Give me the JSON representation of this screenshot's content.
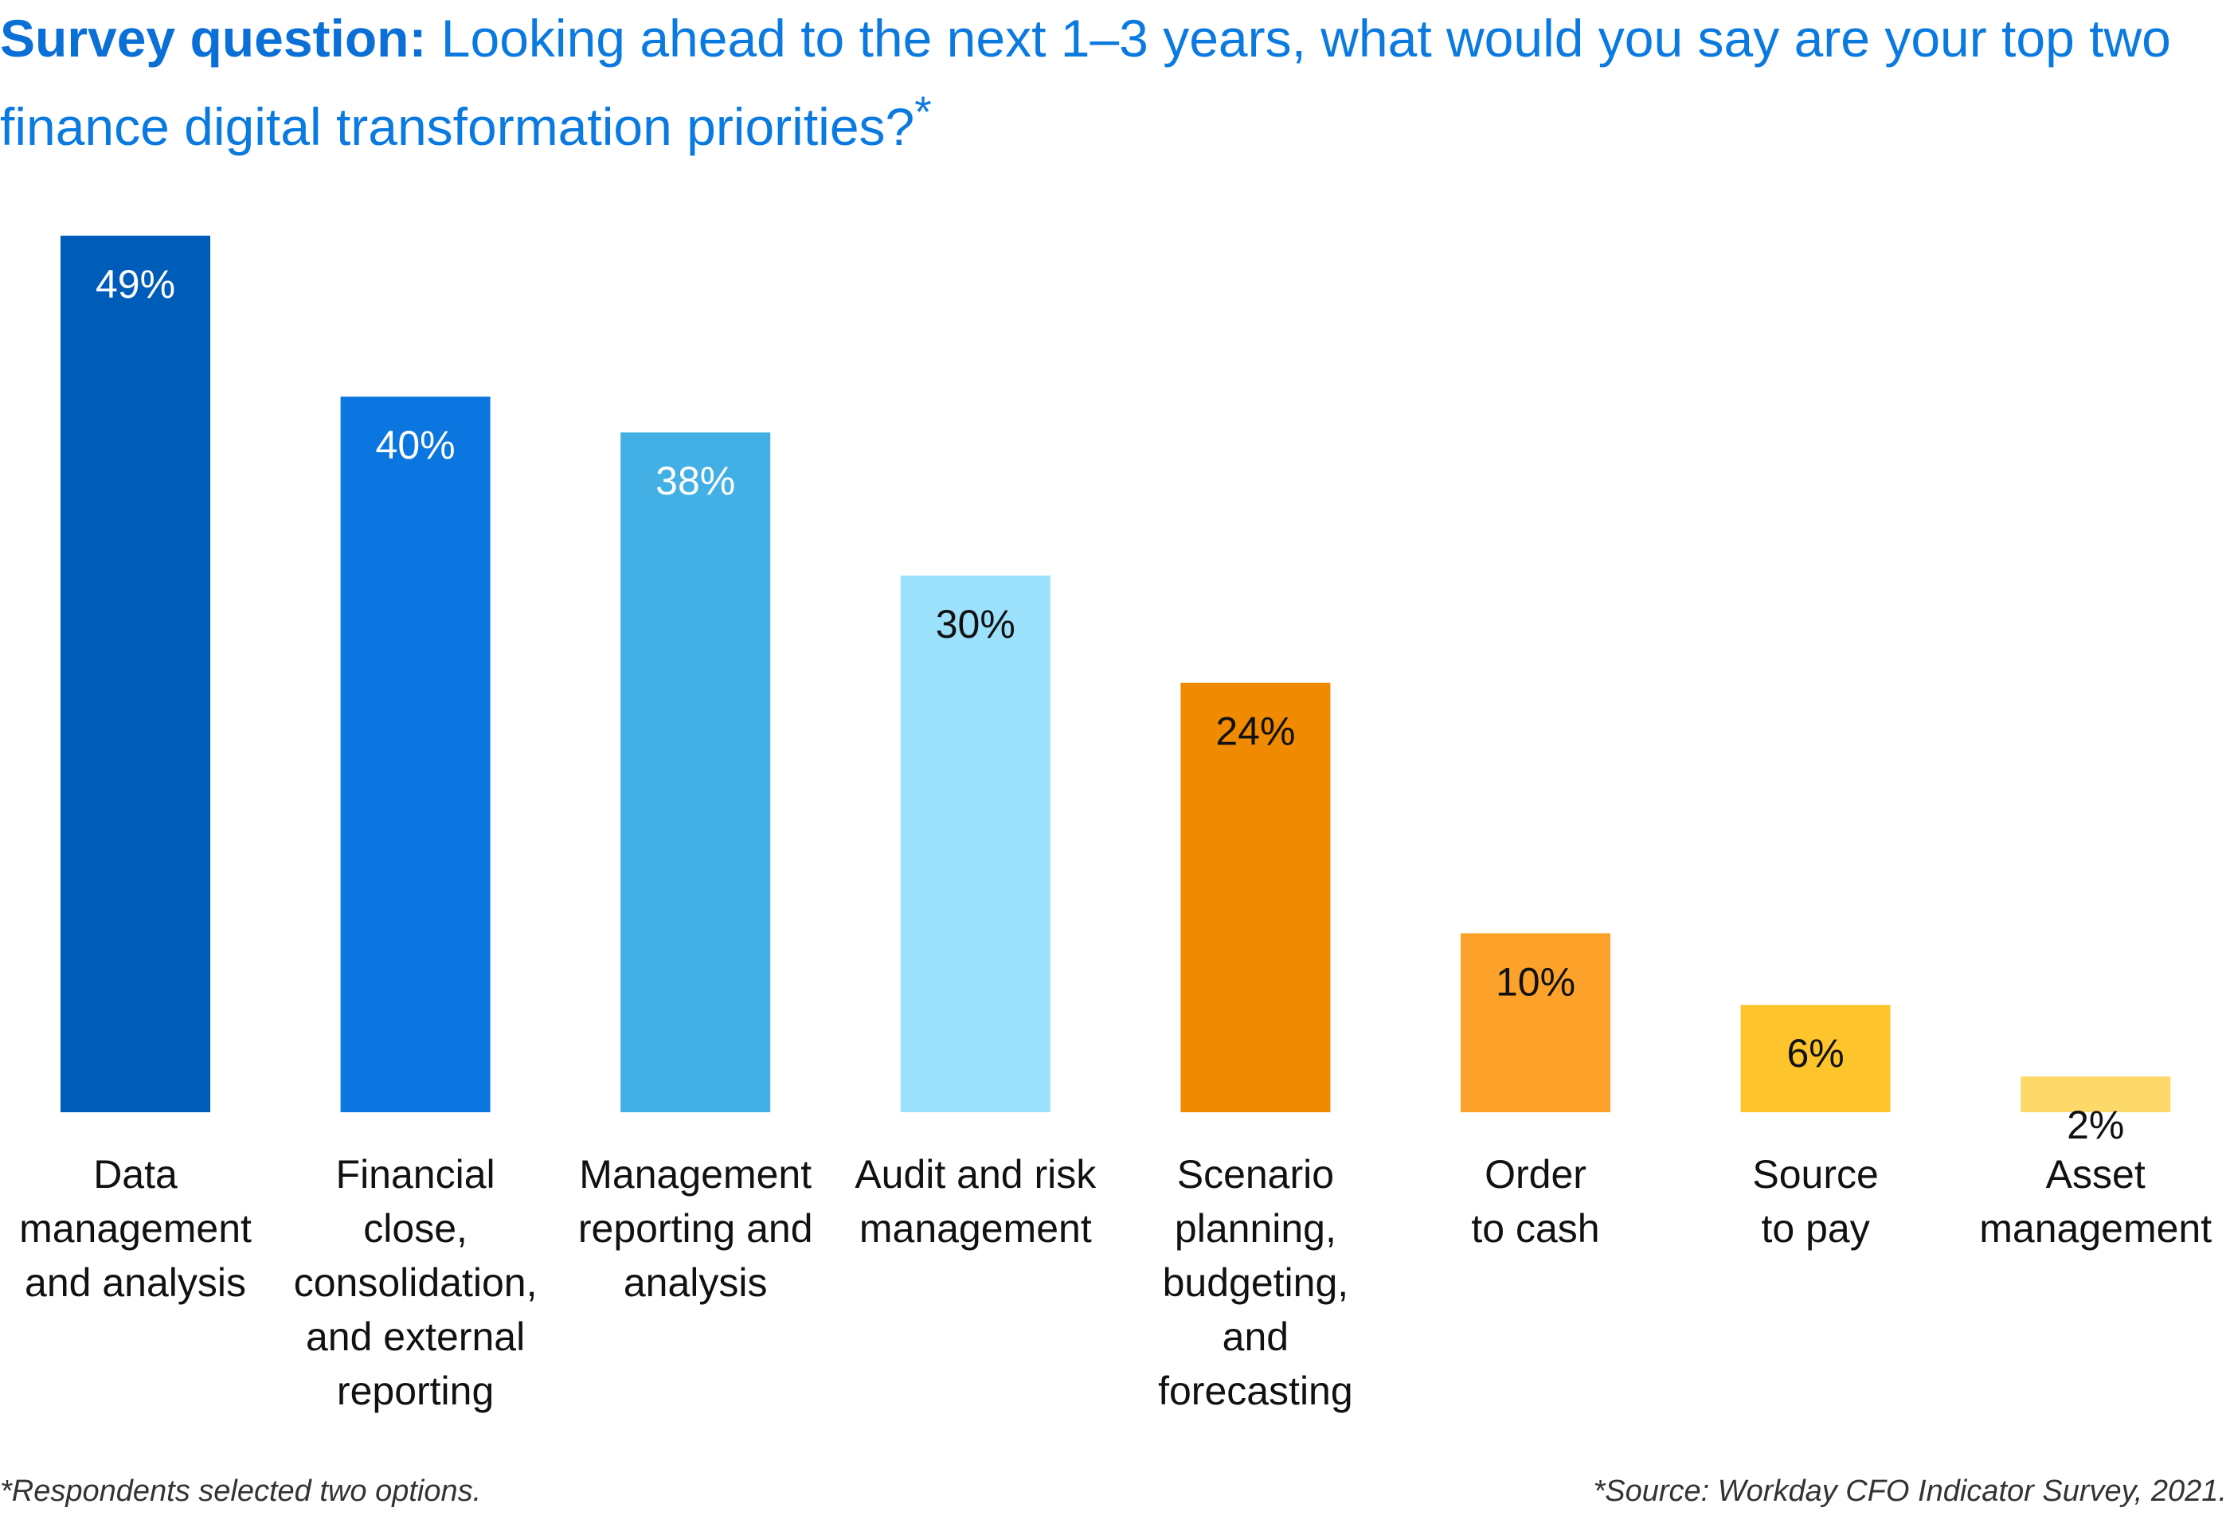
{
  "header": {
    "lead": "Survey question:",
    "question": "Looking ahead to the next 1–3 years, what would you say are your top two finance digital transformation priorities?",
    "asterisk": "*"
  },
  "chart_data": {
    "type": "bar",
    "categories": [
      "Data management and analysis",
      "Financial close, consolidation, and external reporting",
      "Management reporting and analysis",
      "Audit and risk management",
      "Scenario planning, budgeting, and forecasting",
      "Order to cash",
      "Source to pay",
      "Asset management"
    ],
    "category_lines": [
      [
        "Data",
        "management",
        "and analysis"
      ],
      [
        "Financial",
        "close,",
        "consolidation,",
        "and external",
        "reporting"
      ],
      [
        "Management",
        "reporting and",
        "analysis"
      ],
      [
        "Audit and risk",
        "management"
      ],
      [
        "Scenario",
        "planning,",
        "budgeting,",
        "and",
        "forecasting"
      ],
      [
        "Order",
        "to cash"
      ],
      [
        "Source",
        "to pay"
      ],
      [
        "Asset",
        "management"
      ]
    ],
    "values": [
      49,
      40,
      38,
      30,
      24,
      10,
      6,
      2
    ],
    "value_labels": [
      "49%",
      "40%",
      "38%",
      "30%",
      "24%",
      "10%",
      "6%",
      "2%"
    ],
    "colors": [
      "#005cb9",
      "#0b75e0",
      "#42b0e4",
      "#9ce1fc",
      "#f08a00",
      "#fca22a",
      "#fdc42c",
      "#fdd96a"
    ],
    "label_colors": [
      "#ffffff",
      "#ffffff",
      "#ffffff",
      "#111111",
      "#111111",
      "#111111",
      "#111111",
      "#111111"
    ],
    "ylim": [
      0,
      49
    ],
    "grid": false,
    "legend": "none",
    "title": "",
    "xlabel": "",
    "ylabel": ""
  },
  "footnotes": {
    "left": "*Respondents selected two options.",
    "right": "*Source: Workday CFO Indicator Survey, 2021."
  }
}
